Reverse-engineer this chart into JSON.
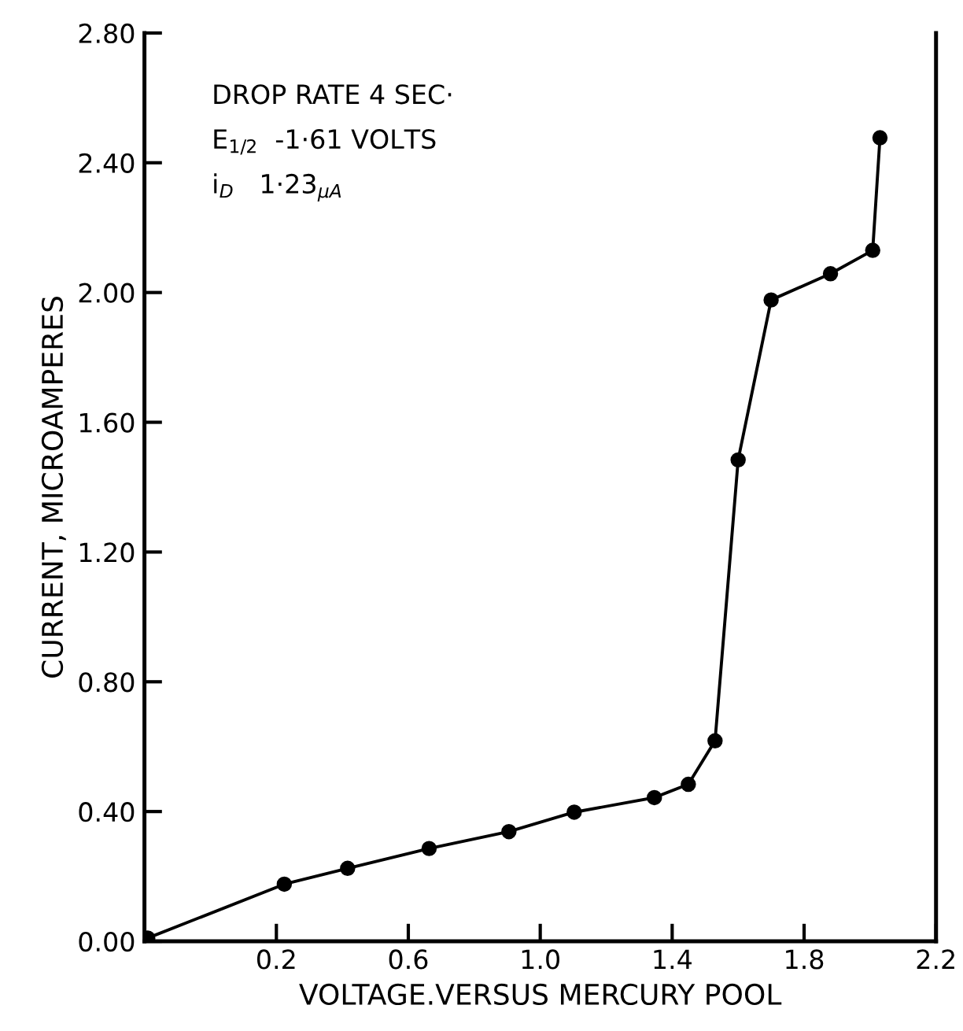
{
  "chart_data": {
    "type": "line",
    "xlabel": "VOLTAGE.VERSUS MERCURY POOL",
    "ylabel": "CURRENT, MICROAMPERES",
    "x": [
      -0.19,
      0.224,
      0.416,
      0.663,
      0.905,
      1.103,
      1.346,
      1.449,
      1.53,
      1.6,
      1.7,
      1.88,
      2.008,
      2.03
    ],
    "series": [
      {
        "color": "#000000",
        "values": [
          0.01,
          0.176,
          0.225,
          0.286,
          0.338,
          0.398,
          0.443,
          0.484,
          0.618,
          1.484,
          1.977,
          2.058,
          2.13,
          2.477
        ]
      }
    ],
    "marker": "circle",
    "line_style": "solid",
    "xlim": [
      -0.2,
      2.2
    ],
    "ylim": [
      0,
      2.8
    ],
    "xticks": [
      0.2,
      0.6,
      {
        "value": 1.0,
        "label": "1.0"
      },
      1.4,
      1.8,
      2.2
    ],
    "yticks": [
      {
        "value": 0,
        "label": "0.00"
      },
      {
        "value": 0.4,
        "label": "0.40"
      },
      {
        "value": 0.8,
        "label": "0.80"
      },
      {
        "value": 1.2,
        "label": "1.20"
      },
      {
        "value": 1.6,
        "label": "1.60"
      },
      {
        "value": 2.0,
        "label": "2.00"
      },
      {
        "value": 2.4,
        "label": "2.40"
      },
      {
        "value": 2.8,
        "label": "2.80"
      }
    ],
    "annotations": [
      "DROP RATE 4 SEC·",
      "E$_{1/2}$  -1·61 VOLTS",
      "i$_{D}$   1·23$_{μA}$"
    ],
    "grid": false
  }
}
